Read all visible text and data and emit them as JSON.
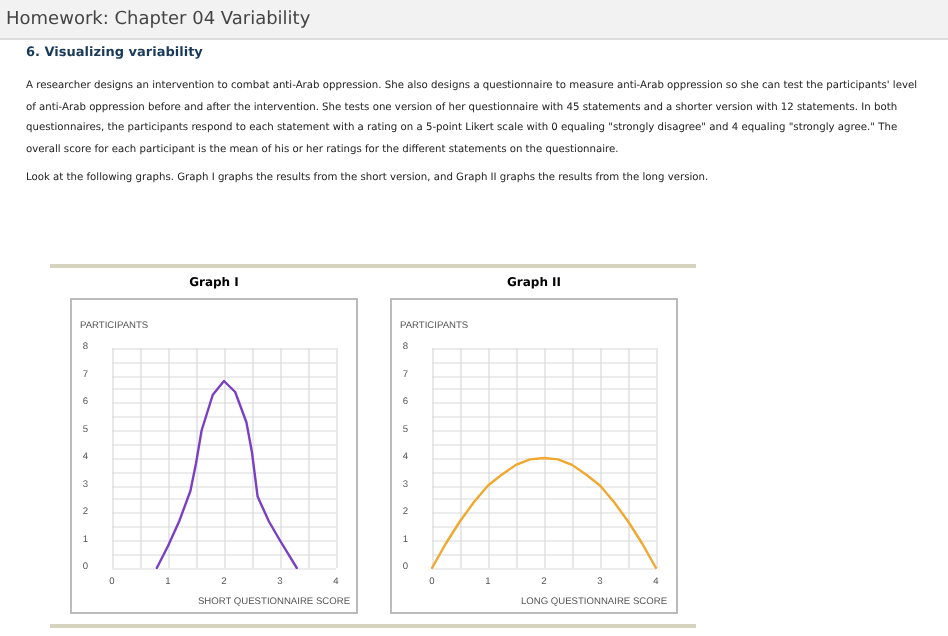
{
  "chart_data": [
    {
      "type": "line",
      "title": "Graph I",
      "xlabel": "SHORT QUESTIONNAIRE SCORE",
      "ylabel": "PARTICIPANTS",
      "annotations": [
        "Homework: Chapter 04 Variability",
        "6. Visualizing variability",
        "A researcher designs an intervention to combat anti-Arab oppression. She also designs a questionnaire to measure anti-Arab oppression so she can test the participants' level of anti-Arab oppression before and after the intervention. She tests one version of her questionnaire with 45 statements and a shorter version with 12 statements. In both questionnaires, the participants respond to each statement with a rating on a 5-point Likert scale with 0 equaling \"strongly disagree\" and 4 equaling \"strongly agree.\" The overall score for each participant is the mean of his or her ratings for the different statements on the questionnaire.",
        "Look at the following graphs. Graph I graphs the results from the short version, and Graph II graphs the results from the long version."
      ],
      "x": [
        0.8,
        1,
        1.2,
        1.4,
        1.5,
        1.6,
        1.8,
        2,
        2.2,
        2.4,
        2.5,
        2.6,
        2.8,
        3,
        3.3
      ],
      "series": [
        {
          "color": "#7b3fc4",
          "values": [
            0,
            0.8,
            1.7,
            2.8,
            3.8,
            5,
            6.3,
            6.8,
            6.4,
            5.3,
            4.2,
            2.6,
            1.7,
            1,
            0
          ]
        }
      ],
      "xlim": [
        0,
        4
      ],
      "xticks": [
        0,
        {
          "value": 0.5,
          "label": null
        },
        1,
        {
          "value": 1.5,
          "label": null
        },
        2,
        {
          "value": 2.5,
          "label": null
        },
        3,
        {
          "value": 3.5,
          "label": null
        },
        4
      ],
      "ylim": [
        0,
        8
      ],
      "yticks": [
        0,
        {
          "value": 0.5,
          "label": null
        },
        1,
        {
          "value": 1.5,
          "label": null
        },
        2,
        {
          "value": 2.5,
          "label": null
        },
        3,
        {
          "value": 3.5,
          "label": null
        },
        4,
        {
          "value": 4.5,
          "label": null
        },
        5,
        {
          "value": 5.5,
          "label": null
        },
        6,
        {
          "value": 6.5,
          "label": null
        },
        7,
        {
          "value": 7.5,
          "label": null
        },
        8
      ],
      "grid": true,
      "marker": "none",
      "line_style": "solid"
    },
    {
      "type": "line",
      "title": "Graph II",
      "xlabel": "LONG QUESTIONNAIRE SCORE",
      "ylabel": "PARTICIPANTS",
      "x": [
        0,
        0.25,
        0.5,
        0.75,
        1,
        1.25,
        1.5,
        1.75,
        2,
        2.25,
        2.5,
        2.75,
        3,
        3.25,
        3.5,
        3.75,
        4
      ],
      "series": [
        {
          "color": "#f0a830",
          "values": [
            0,
            0.9,
            1.7,
            2.4,
            3,
            3.4,
            3.75,
            3.95,
            4,
            3.95,
            3.75,
            3.4,
            3,
            2.4,
            1.7,
            0.9,
            0
          ]
        }
      ],
      "xlim": [
        0,
        4
      ],
      "xticks": [
        0,
        {
          "value": 0.5,
          "label": null
        },
        1,
        {
          "value": 1.5,
          "label": null
        },
        2,
        {
          "value": 2.5,
          "label": null
        },
        3,
        {
          "value": 3.5,
          "label": null
        },
        4
      ],
      "ylim": [
        0,
        8
      ],
      "yticks": [
        0,
        {
          "value": 0.5,
          "label": null
        },
        1,
        {
          "value": 1.5,
          "label": null
        },
        2,
        {
          "value": 2.5,
          "label": null
        },
        3,
        {
          "value": 3.5,
          "label": null
        },
        4,
        {
          "value": 4.5,
          "label": null
        },
        5,
        {
          "value": 5.5,
          "label": null
        },
        6,
        {
          "value": 6.5,
          "label": null
        },
        7,
        {
          "value": 7.5,
          "label": null
        },
        8
      ],
      "grid": true,
      "marker": "none",
      "line_style": "solid"
    }
  ]
}
